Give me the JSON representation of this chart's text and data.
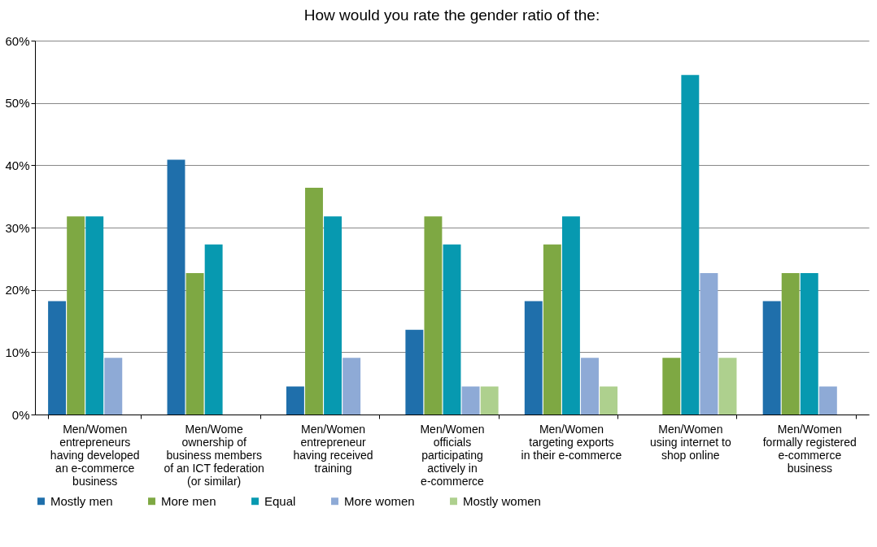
{
  "chart_data": {
    "type": "bar",
    "title": "How would you rate the gender ratio of the:",
    "categories": [
      "Men/Women\nentrepreneurs\nhaving developed\nan e-commerce\nbusiness",
      "Men/Wome\nownership of\nbusiness members\nof an ICT federation\n(or similar)",
      "Men/Women\nentrepreneur\nhaving received\ntraining",
      "Men/Women\nofficials\nparticipating\nactively in\ne-commerce",
      "Men/Women\ntargeting exports\nin their e-commerce",
      "Men/Women\nusing internet to\nshop online",
      "Men/Women\nformally registered\ne-commerce\nbusiness"
    ],
    "series": [
      {
        "name": "Mostly men",
        "color": "#1f6fab",
        "values": [
          18.2,
          40.9,
          4.5,
          13.6,
          18.2,
          0,
          18.2
        ]
      },
      {
        "name": "More men",
        "color": "#7ea843",
        "values": [
          31.8,
          22.7,
          36.4,
          31.8,
          27.3,
          9.1,
          22.7
        ]
      },
      {
        "name": "Equal",
        "color": "#0799b0",
        "values": [
          31.8,
          27.3,
          31.8,
          27.3,
          31.8,
          54.5,
          22.7
        ]
      },
      {
        "name": "More women",
        "color": "#8eaad6",
        "values": [
          9.1,
          0,
          9.1,
          4.5,
          9.1,
          22.7,
          4.5
        ]
      },
      {
        "name": "Mostly women",
        "color": "#aed08e",
        "values": [
          0,
          0,
          0,
          4.5,
          4.5,
          9.1,
          0
        ]
      }
    ],
    "ylim": [
      0,
      60
    ],
    "yticks": [
      {
        "value": 0,
        "label": "0%"
      },
      {
        "value": 10,
        "label": "10%"
      },
      {
        "value": 20,
        "label": "20%"
      },
      {
        "value": 30,
        "label": "30%"
      },
      {
        "value": 40,
        "label": "40%"
      },
      {
        "value": 50,
        "label": "50%"
      },
      {
        "value": 60,
        "label": "60%"
      }
    ],
    "grid": "y",
    "legend": "bottom"
  }
}
